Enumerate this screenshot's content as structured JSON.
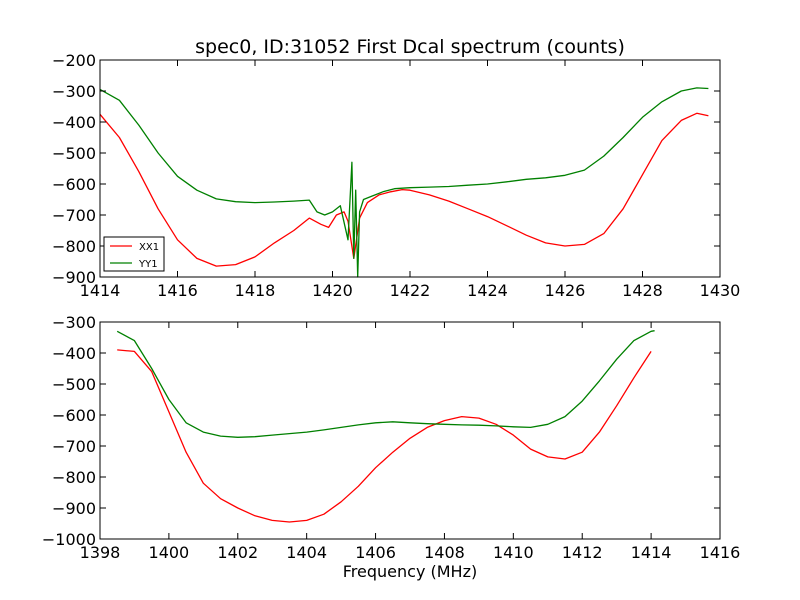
{
  "chart_data": [
    {
      "type": "line",
      "title": "spec0, ID:31052 First Dcal spectrum (counts)",
      "xlabel": "",
      "ylabel": "",
      "xlim": [
        1414,
        1430
      ],
      "ylim": [
        -900,
        -200
      ],
      "xticks": [
        1414,
        1416,
        1418,
        1420,
        1422,
        1424,
        1426,
        1428,
        1430
      ],
      "yticks": [
        -900,
        -800,
        -700,
        -600,
        -500,
        -400,
        -300,
        -200
      ],
      "grid": false,
      "legend": "lower-left",
      "series": [
        {
          "name": "XX1",
          "color": "#ff0000",
          "x": [
            1414.0,
            1414.5,
            1415.0,
            1415.5,
            1416.0,
            1416.5,
            1417.0,
            1417.5,
            1418.0,
            1418.5,
            1419.0,
            1419.4,
            1419.7,
            1419.9,
            1420.1,
            1420.3,
            1420.4,
            1420.55,
            1420.7,
            1420.9,
            1421.2,
            1421.5,
            1421.8,
            1422.0,
            1422.5,
            1423.0,
            1423.5,
            1424.0,
            1424.5,
            1425.0,
            1425.5,
            1426.0,
            1426.5,
            1427.0,
            1427.5,
            1428.0,
            1428.5,
            1429.0,
            1429.4,
            1429.7
          ],
          "values": [
            -375,
            -450,
            -560,
            -680,
            -780,
            -840,
            -865,
            -860,
            -835,
            -790,
            -750,
            -710,
            -730,
            -740,
            -700,
            -690,
            -720,
            -840,
            -710,
            -660,
            -635,
            -625,
            -618,
            -620,
            -635,
            -655,
            -680,
            -705,
            -735,
            -765,
            -790,
            -800,
            -795,
            -760,
            -680,
            -570,
            -460,
            -395,
            -372,
            -380
          ]
        },
        {
          "name": "YY1",
          "color": "#008000",
          "x": [
            1414.0,
            1414.5,
            1415.0,
            1415.5,
            1416.0,
            1416.5,
            1417.0,
            1417.5,
            1418.0,
            1418.5,
            1419.0,
            1419.4,
            1419.6,
            1419.8,
            1420.0,
            1420.2,
            1420.4,
            1420.5,
            1420.55,
            1420.6,
            1420.65,
            1420.7,
            1420.8,
            1421.0,
            1421.3,
            1421.6,
            1422.0,
            1422.5,
            1423.0,
            1423.5,
            1424.0,
            1424.5,
            1425.0,
            1425.5,
            1426.0,
            1426.5,
            1427.0,
            1427.5,
            1428.0,
            1428.5,
            1429.0,
            1429.4,
            1429.7
          ],
          "values": [
            -295,
            -330,
            -410,
            -500,
            -575,
            -620,
            -648,
            -657,
            -660,
            -658,
            -655,
            -652,
            -690,
            -700,
            -690,
            -670,
            -780,
            -530,
            -840,
            -620,
            -900,
            -690,
            -650,
            -640,
            -625,
            -615,
            -612,
            -610,
            -608,
            -604,
            -600,
            -593,
            -585,
            -580,
            -572,
            -555,
            -510,
            -450,
            -385,
            -335,
            -300,
            -290,
            -292
          ]
        }
      ]
    },
    {
      "type": "line",
      "title": "",
      "xlabel": "Frequency (MHz)",
      "ylabel": "",
      "xlim": [
        1398,
        1416
      ],
      "ylim": [
        -1000,
        -300
      ],
      "xticks": [
        1398,
        1400,
        1402,
        1404,
        1406,
        1408,
        1410,
        1412,
        1414,
        1416
      ],
      "yticks": [
        -1000,
        -900,
        -800,
        -700,
        -600,
        -500,
        -400,
        -300
      ],
      "grid": false,
      "legend": "none",
      "series": [
        {
          "name": "XX1",
          "color": "#ff0000",
          "x": [
            1398.5,
            1399.0,
            1399.5,
            1400.0,
            1400.5,
            1401.0,
            1401.5,
            1402.0,
            1402.5,
            1403.0,
            1403.5,
            1404.0,
            1404.5,
            1405.0,
            1405.5,
            1406.0,
            1406.5,
            1407.0,
            1407.5,
            1408.0,
            1408.5,
            1409.0,
            1409.5,
            1410.0,
            1410.5,
            1411.0,
            1411.5,
            1412.0,
            1412.5,
            1413.0,
            1413.5,
            1414.0
          ],
          "values": [
            -390,
            -395,
            -460,
            -590,
            -720,
            -820,
            -870,
            -900,
            -925,
            -940,
            -945,
            -940,
            -920,
            -880,
            -830,
            -770,
            -720,
            -675,
            -640,
            -618,
            -605,
            -610,
            -630,
            -665,
            -710,
            -735,
            -742,
            -720,
            -655,
            -570,
            -480,
            -395
          ]
        },
        {
          "name": "YY1",
          "color": "#008000",
          "x": [
            1398.5,
            1399.0,
            1399.5,
            1400.0,
            1400.5,
            1401.0,
            1401.5,
            1402.0,
            1402.5,
            1403.0,
            1403.5,
            1404.0,
            1404.5,
            1405.0,
            1405.5,
            1406.0,
            1406.5,
            1407.0,
            1407.5,
            1408.0,
            1408.5,
            1409.0,
            1409.5,
            1410.0,
            1410.5,
            1411.0,
            1411.5,
            1412.0,
            1412.5,
            1413.0,
            1413.5,
            1414.0,
            1414.1
          ],
          "values": [
            -330,
            -360,
            -450,
            -550,
            -625,
            -655,
            -668,
            -672,
            -670,
            -665,
            -660,
            -655,
            -648,
            -640,
            -632,
            -625,
            -622,
            -625,
            -628,
            -630,
            -632,
            -633,
            -635,
            -638,
            -640,
            -630,
            -605,
            -555,
            -490,
            -420,
            -360,
            -330,
            -328
          ]
        }
      ]
    }
  ]
}
